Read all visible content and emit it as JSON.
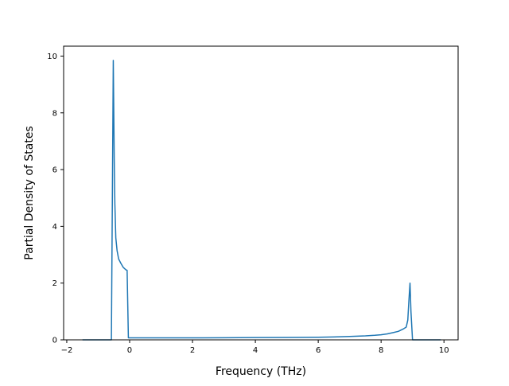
{
  "chart_data": {
    "type": "line",
    "title": "",
    "xlabel": "Frequency (THz)",
    "ylabel": "Partial Density of States",
    "xlim": [
      -2.1,
      10.45
    ],
    "ylim": [
      0,
      10.35
    ],
    "xticks": [
      -2,
      0,
      2,
      4,
      6,
      8,
      10
    ],
    "yticks": [
      0,
      2,
      4,
      6,
      8,
      10
    ],
    "grid": false,
    "legend": "none",
    "series": [
      {
        "color": "#1f77b4",
        "x": [
          -1.5,
          -0.58,
          -0.52,
          -0.49,
          -0.47,
          -0.44,
          -0.4,
          -0.35,
          -0.28,
          -0.2,
          -0.12,
          -0.08,
          -0.04,
          0.0,
          1.0,
          2.0,
          3.0,
          4.0,
          5.0,
          6.0,
          6.5,
          7.0,
          7.5,
          7.8,
          8.0,
          8.2,
          8.4,
          8.55,
          8.7,
          8.8,
          8.85,
          8.88,
          8.92,
          8.95,
          9.0,
          9.9
        ],
        "y": [
          0,
          0,
          9.85,
          6.4,
          4.8,
          3.6,
          3.15,
          2.85,
          2.7,
          2.55,
          2.47,
          2.45,
          0.07,
          0.07,
          0.07,
          0.07,
          0.075,
          0.08,
          0.085,
          0.09,
          0.1,
          0.12,
          0.14,
          0.16,
          0.18,
          0.21,
          0.26,
          0.3,
          0.38,
          0.45,
          0.7,
          1.3,
          2.0,
          1.0,
          0,
          0
        ]
      }
    ]
  }
}
